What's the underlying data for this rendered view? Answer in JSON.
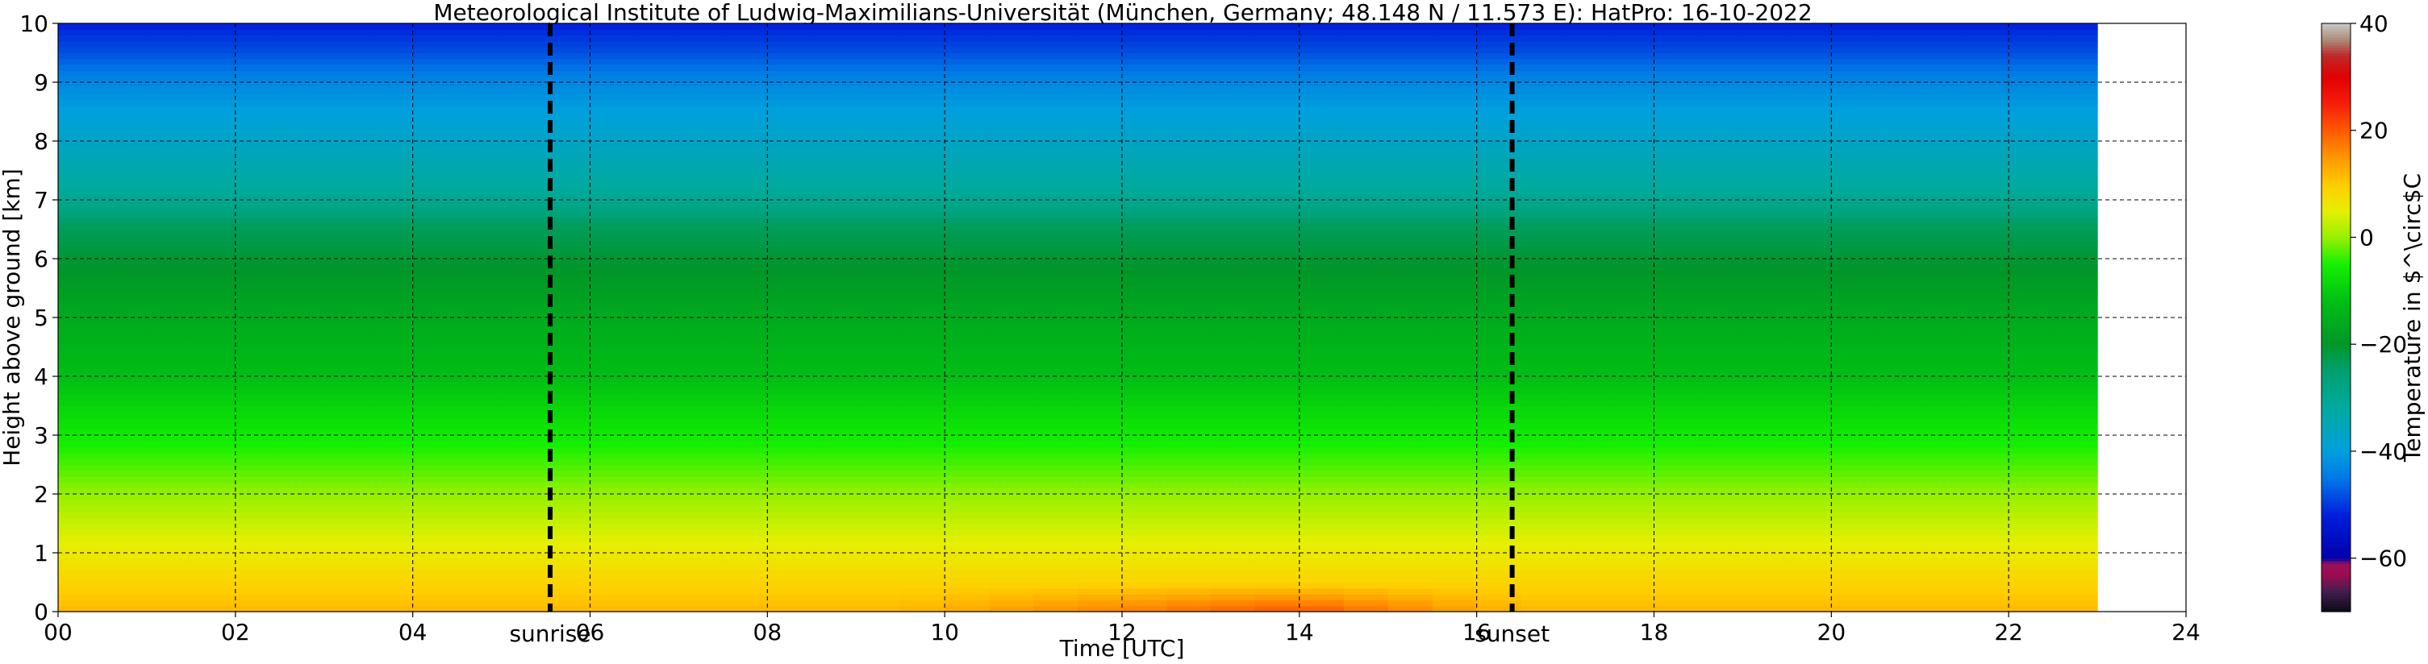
{
  "chart_data": {
    "type": "heatmap",
    "title": "Meteorological Institute of Ludwig-Maximilians-Universität (München, Germany; 48.148 N / 11.573 E):    HatPro: 16-10-2022",
    "xlabel": "Time [UTC]",
    "ylabel": "Height above ground [km]",
    "xlim": [
      0,
      24
    ],
    "ylim": [
      0,
      10
    ],
    "x_ticks": [
      "00",
      "02",
      "04",
      "06",
      "08",
      "10",
      "12",
      "14",
      "16",
      "18",
      "20",
      "22",
      "24"
    ],
    "y_ticks": [
      "0",
      "1",
      "2",
      "3",
      "4",
      "5",
      "6",
      "7",
      "8",
      "9",
      "10"
    ],
    "data_time_range": [
      0,
      23
    ],
    "grid": true,
    "events": [
      {
        "label": "sunrise",
        "time": 5.55
      },
      {
        "label": "sunset",
        "time": 16.4
      }
    ],
    "colorbar": {
      "label": "Temperature in $^\\circ$C",
      "range": [
        -70,
        40
      ],
      "ticks": [
        "40",
        "20",
        "0",
        "−20",
        "−40",
        "−60"
      ],
      "tick_values": [
        40,
        20,
        0,
        -20,
        -40,
        -60
      ]
    },
    "temperature_profile": {
      "height_km": [
        0,
        0.5,
        1,
        1.5,
        2,
        2.5,
        3,
        3.5,
        4,
        5,
        6,
        6.6,
        7,
        8,
        9,
        9.5,
        10
      ],
      "temp_c": [
        12,
        9,
        6,
        3,
        0,
        -3,
        -6,
        -9,
        -12,
        -16,
        -21,
        -24,
        -30,
        -37,
        -43,
        -48,
        -52
      ]
    },
    "surface_warming": {
      "start": 9.5,
      "peak": 14,
      "end": 16.5,
      "peak_temp_c": 20
    }
  }
}
